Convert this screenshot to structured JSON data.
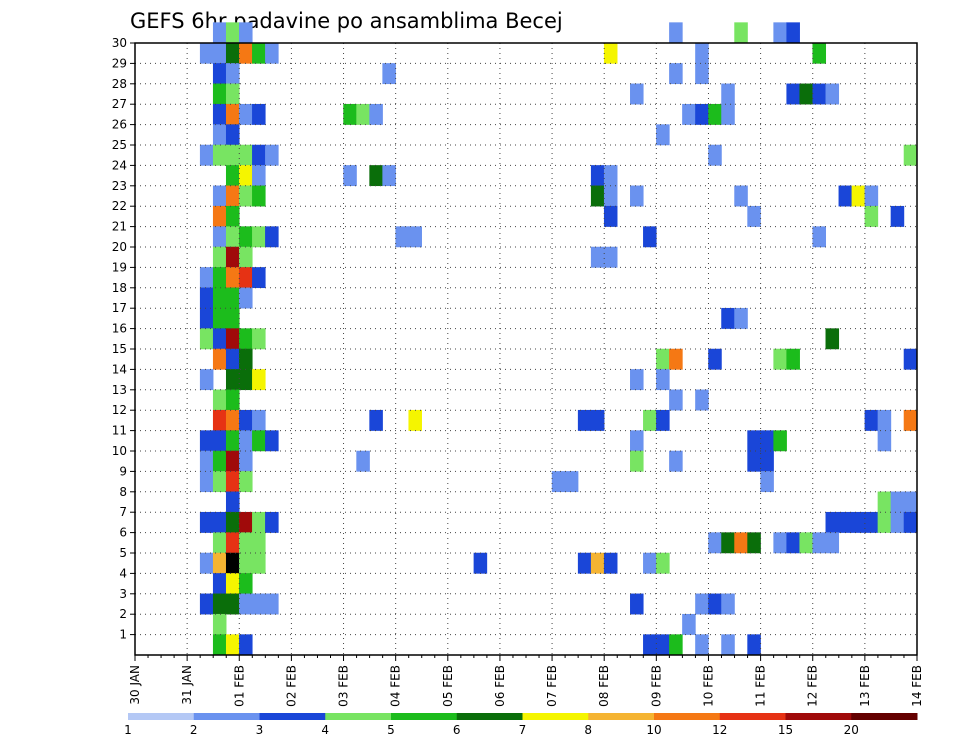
{
  "chart_data": {
    "type": "heatmap",
    "title": "GEFS 6hr padavine po ansamblima Becej",
    "xlabel": "",
    "ylabel": "",
    "x_ticks": [
      "30 JAN",
      "31 JAN",
      "01 FEB",
      "02 FEB",
      "03 FEB",
      "04 FEB",
      "05 FEB",
      "06 FEB",
      "07 FEB",
      "08 FEB",
      "09 FEB",
      "10 FEB",
      "11 FEB",
      "12 FEB",
      "13 FEB",
      "14 FEB"
    ],
    "y_ticks": [
      "1",
      "2",
      "3",
      "4",
      "5",
      "6",
      "7",
      "8",
      "9",
      "10",
      "11",
      "12",
      "13",
      "14",
      "15",
      "16",
      "17",
      "18",
      "19",
      "20",
      "21",
      "22",
      "23",
      "24",
      "25",
      "26",
      "27",
      "28",
      "29",
      "30"
    ],
    "xlim": [
      0,
      60
    ],
    "ylim": [
      0,
      30
    ],
    "grid": true,
    "x_unit": "6-hour steps from 30 JAN 00z",
    "colorbar": {
      "levels": [
        "1",
        "2",
        "3",
        "4",
        "5",
        "6",
        "7",
        "8",
        "10",
        "12",
        "15",
        "20"
      ],
      "colors": [
        "#b4c8f5",
        "#6a92ef",
        "#1a46d8",
        "#78e462",
        "#1cbc1c",
        "#0a6e0a",
        "#f5f500",
        "#f5b432",
        "#f57814",
        "#e63214",
        "#a00a0a",
        "#640000"
      ]
    },
    "cells": [
      [
        6,
        30,
        1
      ],
      [
        7,
        30,
        3
      ],
      [
        8,
        30,
        1
      ],
      [
        41,
        30,
        1
      ],
      [
        46,
        30,
        3
      ],
      [
        49,
        30,
        1
      ],
      [
        50,
        30,
        2
      ],
      [
        5,
        29,
        1
      ],
      [
        6,
        29,
        1
      ],
      [
        7,
        29,
        5
      ],
      [
        8,
        29,
        8
      ],
      [
        9,
        29,
        4
      ],
      [
        10,
        29,
        1
      ],
      [
        36,
        29,
        6
      ],
      [
        43,
        29,
        1
      ],
      [
        52,
        29,
        4
      ],
      [
        6,
        28,
        2
      ],
      [
        7,
        28,
        1
      ],
      [
        19,
        28,
        1
      ],
      [
        41,
        28,
        1
      ],
      [
        43,
        28,
        1
      ],
      [
        6,
        27,
        4
      ],
      [
        7,
        27,
        3
      ],
      [
        38,
        27,
        1
      ],
      [
        45,
        27,
        1
      ],
      [
        50,
        27,
        2
      ],
      [
        51,
        27,
        5
      ],
      [
        52,
        27,
        2
      ],
      [
        53,
        27,
        1
      ],
      [
        6,
        26,
        2
      ],
      [
        7,
        26,
        8
      ],
      [
        8,
        26,
        1
      ],
      [
        9,
        26,
        2
      ],
      [
        16,
        26,
        4
      ],
      [
        17,
        26,
        3
      ],
      [
        18,
        26,
        1
      ],
      [
        42,
        26,
        1
      ],
      [
        43,
        26,
        2
      ],
      [
        44,
        26,
        4
      ],
      [
        45,
        26,
        1
      ],
      [
        6,
        25,
        1
      ],
      [
        7,
        25,
        2
      ],
      [
        40,
        25,
        1
      ],
      [
        5,
        24,
        1
      ],
      [
        6,
        24,
        3
      ],
      [
        7,
        24,
        3
      ],
      [
        8,
        24,
        3
      ],
      [
        9,
        24,
        2
      ],
      [
        10,
        24,
        1
      ],
      [
        44,
        24,
        1
      ],
      [
        59,
        24,
        3
      ],
      [
        7,
        23,
        4
      ],
      [
        8,
        23,
        6
      ],
      [
        9,
        23,
        1
      ],
      [
        16,
        23,
        1
      ],
      [
        18,
        23,
        5
      ],
      [
        19,
        23,
        1
      ],
      [
        35,
        23,
        2
      ],
      [
        36,
        23,
        1
      ],
      [
        6,
        22,
        1
      ],
      [
        7,
        22,
        8
      ],
      [
        8,
        22,
        3
      ],
      [
        9,
        22,
        4
      ],
      [
        35,
        22,
        5
      ],
      [
        36,
        22,
        1
      ],
      [
        38,
        22,
        1
      ],
      [
        46,
        22,
        1
      ],
      [
        54,
        22,
        2
      ],
      [
        55,
        22,
        6
      ],
      [
        56,
        22,
        1
      ],
      [
        6,
        21,
        8
      ],
      [
        7,
        21,
        4
      ],
      [
        36,
        21,
        2
      ],
      [
        47,
        21,
        1
      ],
      [
        56,
        21,
        3
      ],
      [
        58,
        21,
        2
      ],
      [
        6,
        20,
        1
      ],
      [
        7,
        20,
        3
      ],
      [
        8,
        20,
        4
      ],
      [
        9,
        20,
        3
      ],
      [
        10,
        20,
        2
      ],
      [
        20,
        20,
        1
      ],
      [
        21,
        20,
        1
      ],
      [
        39,
        20,
        2
      ],
      [
        52,
        20,
        1
      ],
      [
        6,
        19,
        3
      ],
      [
        7,
        19,
        10
      ],
      [
        8,
        19,
        3
      ],
      [
        35,
        19,
        1
      ],
      [
        36,
        19,
        1
      ],
      [
        5,
        18,
        1
      ],
      [
        6,
        18,
        4
      ],
      [
        7,
        18,
        8
      ],
      [
        8,
        18,
        9
      ],
      [
        9,
        18,
        2
      ],
      [
        5,
        17,
        2
      ],
      [
        6,
        17,
        4
      ],
      [
        7,
        17,
        4
      ],
      [
        8,
        17,
        1
      ],
      [
        5,
        16,
        2
      ],
      [
        6,
        16,
        4
      ],
      [
        7,
        16,
        4
      ],
      [
        45,
        16,
        2
      ],
      [
        46,
        16,
        1
      ],
      [
        5,
        15,
        3
      ],
      [
        6,
        15,
        2
      ],
      [
        7,
        15,
        10
      ],
      [
        8,
        15,
        4
      ],
      [
        9,
        15,
        3
      ],
      [
        53,
        15,
        5
      ],
      [
        6,
        14,
        8
      ],
      [
        7,
        14,
        2
      ],
      [
        8,
        14,
        5
      ],
      [
        40,
        14,
        3
      ],
      [
        41,
        14,
        8
      ],
      [
        44,
        14,
        2
      ],
      [
        49,
        14,
        3
      ],
      [
        50,
        14,
        4
      ],
      [
        59,
        14,
        2
      ],
      [
        5,
        13,
        1
      ],
      [
        7,
        13,
        5
      ],
      [
        8,
        13,
        5
      ],
      [
        9,
        13,
        6
      ],
      [
        38,
        13,
        1
      ],
      [
        40,
        13,
        1
      ],
      [
        6,
        12,
        3
      ],
      [
        7,
        12,
        4
      ],
      [
        41,
        12,
        1
      ],
      [
        43,
        12,
        1
      ],
      [
        6,
        11,
        9
      ],
      [
        7,
        11,
        8
      ],
      [
        8,
        11,
        2
      ],
      [
        9,
        11,
        1
      ],
      [
        18,
        11,
        2
      ],
      [
        21,
        11,
        6
      ],
      [
        34,
        11,
        2
      ],
      [
        35,
        11,
        2
      ],
      [
        39,
        11,
        3
      ],
      [
        40,
        11,
        2
      ],
      [
        56,
        11,
        2
      ],
      [
        57,
        11,
        1
      ],
      [
        59,
        11,
        8
      ],
      [
        5,
        10,
        2
      ],
      [
        6,
        10,
        2
      ],
      [
        7,
        10,
        4
      ],
      [
        8,
        10,
        1
      ],
      [
        9,
        10,
        4
      ],
      [
        10,
        10,
        2
      ],
      [
        38,
        10,
        1
      ],
      [
        47,
        10,
        2
      ],
      [
        48,
        10,
        2
      ],
      [
        49,
        10,
        4
      ],
      [
        57,
        10,
        1
      ],
      [
        5,
        9,
        1
      ],
      [
        6,
        9,
        4
      ],
      [
        7,
        9,
        10
      ],
      [
        8,
        9,
        1
      ],
      [
        17,
        9,
        1
      ],
      [
        38,
        9,
        3
      ],
      [
        41,
        9,
        1
      ],
      [
        47,
        9,
        2
      ],
      [
        48,
        9,
        2
      ],
      [
        5,
        8,
        1
      ],
      [
        6,
        8,
        3
      ],
      [
        7,
        8,
        9
      ],
      [
        8,
        8,
        3
      ],
      [
        32,
        8,
        1
      ],
      [
        33,
        8,
        1
      ],
      [
        48,
        8,
        1
      ],
      [
        7,
        7,
        2
      ],
      [
        57,
        7,
        3
      ],
      [
        58,
        7,
        1
      ],
      [
        59,
        7,
        1
      ],
      [
        5,
        6,
        2
      ],
      [
        6,
        6,
        2
      ],
      [
        7,
        6,
        5
      ],
      [
        8,
        6,
        10
      ],
      [
        9,
        6,
        3
      ],
      [
        10,
        6,
        2
      ],
      [
        53,
        6,
        2
      ],
      [
        54,
        6,
        2
      ],
      [
        55,
        6,
        2
      ],
      [
        56,
        6,
        2
      ],
      [
        57,
        6,
        3
      ],
      [
        58,
        6,
        1
      ],
      [
        59,
        6,
        2
      ],
      [
        6,
        5,
        3
      ],
      [
        7,
        5,
        9
      ],
      [
        8,
        5,
        3
      ],
      [
        9,
        5,
        3
      ],
      [
        44,
        5,
        1
      ],
      [
        45,
        5,
        5
      ],
      [
        46,
        5,
        8
      ],
      [
        47,
        5,
        5
      ],
      [
        49,
        5,
        1
      ],
      [
        50,
        5,
        2
      ],
      [
        51,
        5,
        3
      ],
      [
        52,
        5,
        1
      ],
      [
        53,
        5,
        1
      ],
      [
        5,
        4,
        1
      ],
      [
        6,
        4,
        7
      ],
      [
        7,
        4,
        12
      ],
      [
        8,
        4,
        3
      ],
      [
        9,
        4,
        3
      ],
      [
        26,
        4,
        2
      ],
      [
        34,
        4,
        2
      ],
      [
        35,
        4,
        7
      ],
      [
        36,
        4,
        2
      ],
      [
        39,
        4,
        1
      ],
      [
        40,
        4,
        3
      ],
      [
        6,
        3,
        2
      ],
      [
        7,
        3,
        6
      ],
      [
        8,
        3,
        4
      ],
      [
        5,
        2,
        2
      ],
      [
        6,
        2,
        5
      ],
      [
        7,
        2,
        5
      ],
      [
        8,
        2,
        1
      ],
      [
        9,
        2,
        1
      ],
      [
        10,
        2,
        1
      ],
      [
        38,
        2,
        2
      ],
      [
        43,
        2,
        1
      ],
      [
        44,
        2,
        2
      ],
      [
        45,
        2,
        1
      ],
      [
        6,
        1,
        3
      ],
      [
        42,
        1,
        1
      ],
      [
        6,
        0,
        4
      ],
      [
        7,
        0,
        6
      ],
      [
        8,
        0,
        2
      ],
      [
        39,
        0,
        2
      ],
      [
        40,
        0,
        2
      ],
      [
        41,
        0,
        4
      ],
      [
        43,
        0,
        1
      ],
      [
        45,
        0,
        1
      ],
      [
        47,
        0,
        2
      ]
    ]
  }
}
